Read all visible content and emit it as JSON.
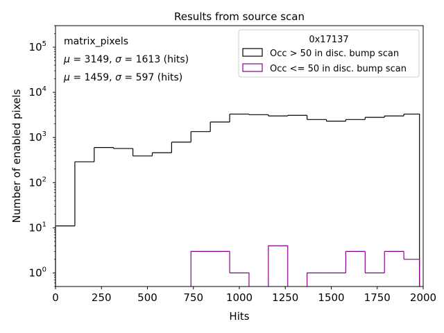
{
  "chart_data": {
    "type": "histogram",
    "title": "Results from source scan",
    "xlabel": "Hits",
    "ylabel": "Number of enabled pixels",
    "xlim": [
      0,
      2000
    ],
    "ylim": [
      0.5,
      300000
    ],
    "yscale": "log",
    "x_ticks": [
      0,
      250,
      500,
      750,
      1000,
      1250,
      1500,
      1750,
      2000
    ],
    "x_tick_labels": [
      "0",
      "250",
      "500",
      "750",
      "1000",
      "1250",
      "1500",
      "1750",
      "2000"
    ],
    "y_ticks": [
      1,
      10,
      100,
      1000,
      10000,
      100000
    ],
    "y_tick_labels": [
      {
        "base": "10",
        "exp": "0"
      },
      {
        "base": "10",
        "exp": "1"
      },
      {
        "base": "10",
        "exp": "2"
      },
      {
        "base": "10",
        "exp": "3"
      },
      {
        "base": "10",
        "exp": "4"
      },
      {
        "base": "10",
        "exp": "5"
      }
    ],
    "bin_edges": [
      0,
      105.3,
      210.5,
      315.8,
      421.1,
      526.3,
      631.6,
      736.8,
      842.1,
      947.4,
      1052.6,
      1157.9,
      1263.2,
      1368.4,
      1473.7,
      1578.9,
      1684.2,
      1789.5,
      1894.7,
      1980
    ],
    "series": [
      {
        "name": "Occ > 50 in disc. bump scan",
        "color": "#000000",
        "values": [
          11,
          290,
          600,
          570,
          390,
          460,
          790,
          1350,
          2200,
          3300,
          3200,
          3000,
          3100,
          2500,
          2300,
          2500,
          2800,
          3000,
          3300
        ]
      },
      {
        "name": "Occ <= 50 in disc. bump scan",
        "color": "#8b008b",
        "values": [
          0,
          0,
          0,
          0,
          0,
          0,
          0,
          3,
          3,
          1,
          0,
          4,
          0,
          1,
          1,
          3,
          1,
          3,
          2
        ]
      }
    ],
    "legend": {
      "title": "0x17137",
      "placement": "top-right",
      "entries": [
        "Occ > 50 in disc. bump scan",
        "Occ <= 50 in disc. bump scan"
      ]
    },
    "annotations": {
      "name": "matrix_pixels",
      "line1": {
        "mu_label": "μ",
        "mu_value": " = 3149, ",
        "sigma_label": "σ",
        "sigma_value": " = 1613 (hits)",
        "color": "#000000"
      },
      "line2": {
        "mu_label": "μ",
        "mu_value": " = 1459, ",
        "sigma_label": "σ",
        "sigma_value": " = 597 (hits)",
        "color": "#8b008b"
      }
    }
  }
}
